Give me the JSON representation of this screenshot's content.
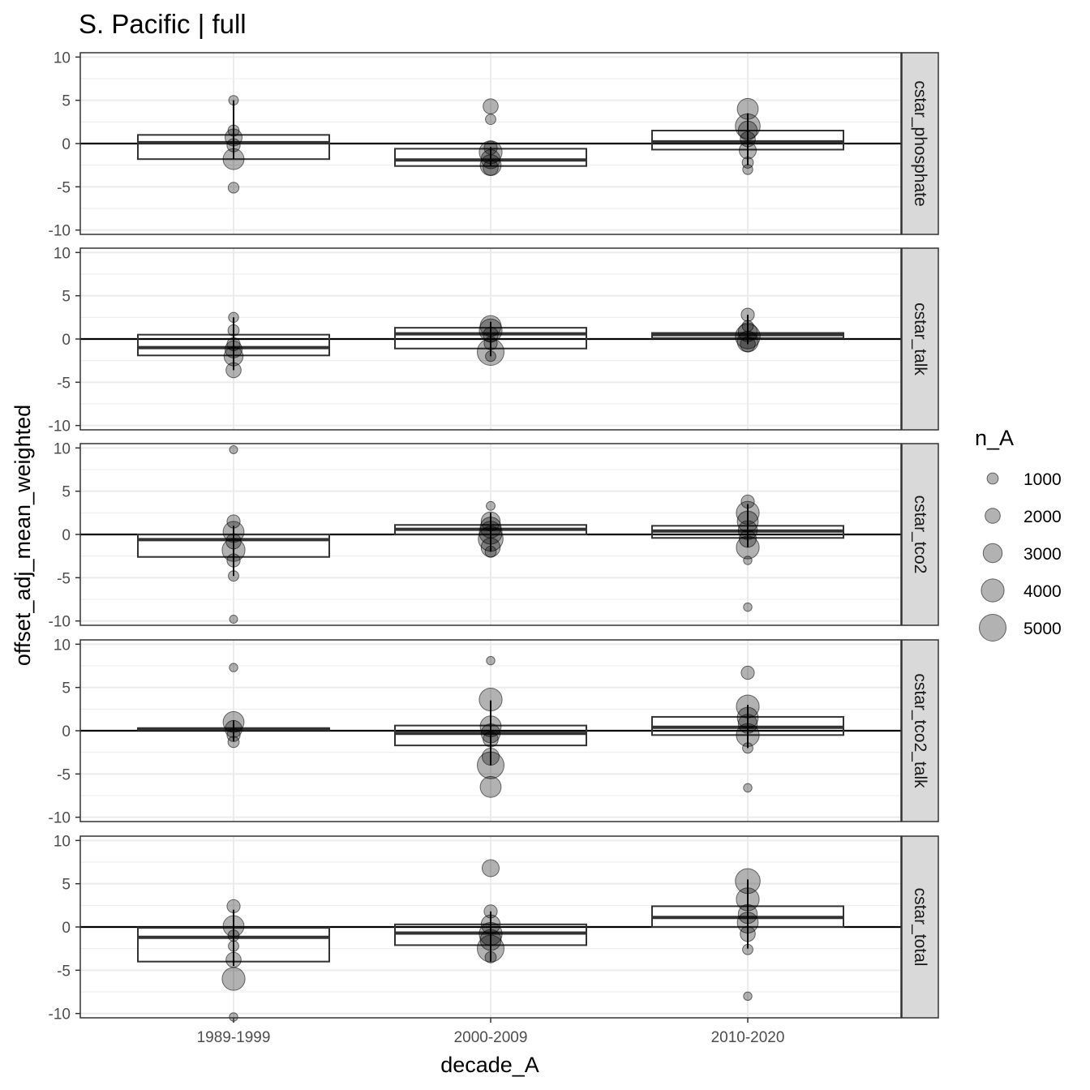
{
  "chart_data": {
    "type": "boxplot",
    "title": "S. Pacific | full",
    "xlabel": "decade_A",
    "ylabel": "offset_adj_mean_weighted",
    "categories": [
      "1989-1999",
      "2000-2009",
      "2010-2020"
    ],
    "ylim": [
      -10.5,
      10.5
    ],
    "y_ticks": [
      10,
      5,
      0,
      -5,
      -10
    ],
    "y_tick_labels": [
      "10",
      "5",
      "0",
      "-5",
      "-10"
    ],
    "grid": true,
    "hline": 0,
    "legend": {
      "title": "n_A",
      "placement": "right",
      "entries": [
        {
          "label": "1000",
          "value": 1000
        },
        {
          "label": "2000",
          "value": 2000
        },
        {
          "label": "3000",
          "value": 3000
        },
        {
          "label": "4000",
          "value": 4000
        },
        {
          "label": "5000",
          "value": 5000
        }
      ]
    },
    "colors": {
      "point": "#000000",
      "box_line": "#333333",
      "strip_bg": "#d9d9d9",
      "grid": "#ebebeb"
    },
    "panels": [
      {
        "name": "cstar_phosphate",
        "boxes": [
          {
            "category": "1989-1999",
            "q1": -1.8,
            "median": 0.1,
            "q3": 1.0
          },
          {
            "category": "2000-2009",
            "q1": -2.6,
            "median": -1.9,
            "q3": -0.6
          },
          {
            "category": "2010-2020",
            "q1": -0.7,
            "median": 0.2,
            "q3": 1.5
          }
        ],
        "whiskers": [
          {
            "category": "1989-1999",
            "low": -1.8,
            "high": 5.0
          },
          {
            "category": "2000-2009",
            "low": -2.6,
            "high": -0.4
          },
          {
            "category": "2010-2020",
            "low": -2.5,
            "high": 3.5
          }
        ],
        "points": [
          {
            "category": "1989-1999",
            "y": 5.0,
            "n": 600
          },
          {
            "category": "1989-1999",
            "y": 1.5,
            "n": 1000
          },
          {
            "category": "1989-1999",
            "y": 0.7,
            "n": 2500
          },
          {
            "category": "1989-1999",
            "y": -0.2,
            "n": 1500
          },
          {
            "category": "1989-1999",
            "y": -1.8,
            "n": 3500
          },
          {
            "category": "1989-1999",
            "y": -5.1,
            "n": 900
          },
          {
            "category": "2000-2009",
            "y": 4.3,
            "n": 2000
          },
          {
            "category": "2000-2009",
            "y": 2.8,
            "n": 800
          },
          {
            "category": "2000-2009",
            "y": -0.5,
            "n": 1500
          },
          {
            "category": "2000-2009",
            "y": -1.0,
            "n": 4000
          },
          {
            "category": "2000-2009",
            "y": -1.8,
            "n": 3000
          },
          {
            "category": "2000-2009",
            "y": -2.5,
            "n": 3500
          },
          {
            "category": "2000-2009",
            "y": -2.8,
            "n": 2000
          },
          {
            "category": "2010-2020",
            "y": 4.0,
            "n": 3500
          },
          {
            "category": "2010-2020",
            "y": 2.0,
            "n": 4500
          },
          {
            "category": "2010-2020",
            "y": 1.5,
            "n": 3000
          },
          {
            "category": "2010-2020",
            "y": 0.5,
            "n": 2000
          },
          {
            "category": "2010-2020",
            "y": -0.8,
            "n": 2500
          },
          {
            "category": "2010-2020",
            "y": -2.2,
            "n": 1000
          },
          {
            "category": "2010-2020",
            "y": -3.0,
            "n": 700
          }
        ]
      },
      {
        "name": "cstar_talk",
        "boxes": [
          {
            "category": "1989-1999",
            "q1": -1.9,
            "median": -1.0,
            "q3": 0.5
          },
          {
            "category": "2000-2009",
            "q1": -1.1,
            "median": 0.6,
            "q3": 1.3
          },
          {
            "category": "2010-2020",
            "q1": 0.1,
            "median": 0.5,
            "q3": 0.7
          }
        ],
        "whiskers": [
          {
            "category": "1989-1999",
            "low": -3.6,
            "high": 2.5
          },
          {
            "category": "2000-2009",
            "low": -2.0,
            "high": 2.0
          },
          {
            "category": "2010-2020",
            "low": -0.6,
            "high": 2.8
          }
        ],
        "points": [
          {
            "category": "1989-1999",
            "y": 2.5,
            "n": 700
          },
          {
            "category": "1989-1999",
            "y": 1.0,
            "n": 1000
          },
          {
            "category": "1989-1999",
            "y": -0.6,
            "n": 1500
          },
          {
            "category": "1989-1999",
            "y": -1.2,
            "n": 2500
          },
          {
            "category": "1989-1999",
            "y": -2.0,
            "n": 3000
          },
          {
            "category": "1989-1999",
            "y": -3.6,
            "n": 2000
          },
          {
            "category": "2000-2009",
            "y": 1.5,
            "n": 3500
          },
          {
            "category": "2000-2009",
            "y": 1.0,
            "n": 4000
          },
          {
            "category": "2000-2009",
            "y": 0.5,
            "n": 2000
          },
          {
            "category": "2000-2009",
            "y": -0.5,
            "n": 1500
          },
          {
            "category": "2000-2009",
            "y": -1.5,
            "n": 5000
          },
          {
            "category": "2000-2009",
            "y": -2.0,
            "n": 800
          },
          {
            "category": "2010-2020",
            "y": 2.8,
            "n": 1500
          },
          {
            "category": "2010-2020",
            "y": 1.5,
            "n": 1000
          },
          {
            "category": "2010-2020",
            "y": 0.8,
            "n": 3000
          },
          {
            "category": "2010-2020",
            "y": 0.3,
            "n": 4500
          },
          {
            "category": "2010-2020",
            "y": -0.3,
            "n": 3500
          },
          {
            "category": "2010-2020",
            "y": -0.6,
            "n": 2000
          }
        ]
      },
      {
        "name": "cstar_tco2",
        "boxes": [
          {
            "category": "1989-1999",
            "q1": -2.6,
            "median": -0.6,
            "q3": 0.0
          },
          {
            "category": "2000-2009",
            "q1": 0.0,
            "median": 0.6,
            "q3": 1.1
          },
          {
            "category": "2010-2020",
            "q1": -0.4,
            "median": 0.4,
            "q3": 1.0
          }
        ],
        "whiskers": [
          {
            "category": "1989-1999",
            "low": -4.8,
            "high": 1.0
          },
          {
            "category": "2000-2009",
            "low": -2.0,
            "high": 2.5
          },
          {
            "category": "2010-2020",
            "low": -1.5,
            "high": 3.5
          }
        ],
        "points": [
          {
            "category": "1989-1999",
            "y": 9.8,
            "n": 200
          },
          {
            "category": "1989-1999",
            "y": 1.5,
            "n": 1500
          },
          {
            "category": "1989-1999",
            "y": 0.3,
            "n": 3500
          },
          {
            "category": "1989-1999",
            "y": -0.8,
            "n": 2000
          },
          {
            "category": "1989-1999",
            "y": -1.8,
            "n": 4000
          },
          {
            "category": "1989-1999",
            "y": -3.0,
            "n": 1500
          },
          {
            "category": "1989-1999",
            "y": -4.8,
            "n": 800
          },
          {
            "category": "1989-1999",
            "y": -9.8,
            "n": 200
          },
          {
            "category": "2000-2009",
            "y": 3.3,
            "n": 400
          },
          {
            "category": "2000-2009",
            "y": 1.5,
            "n": 3000
          },
          {
            "category": "2000-2009",
            "y": 0.8,
            "n": 3500
          },
          {
            "category": "2000-2009",
            "y": 0.2,
            "n": 4000
          },
          {
            "category": "2000-2009",
            "y": -0.5,
            "n": 4500
          },
          {
            "category": "2000-2009",
            "y": -1.5,
            "n": 3000
          },
          {
            "category": "2000-2009",
            "y": -2.0,
            "n": 1000
          },
          {
            "category": "2010-2020",
            "y": 3.8,
            "n": 1500
          },
          {
            "category": "2010-2020",
            "y": 2.5,
            "n": 4000
          },
          {
            "category": "2010-2020",
            "y": 1.5,
            "n": 3500
          },
          {
            "category": "2010-2020",
            "y": 0.5,
            "n": 3000
          },
          {
            "category": "2010-2020",
            "y": -0.5,
            "n": 2500
          },
          {
            "category": "2010-2020",
            "y": -1.5,
            "n": 4000
          },
          {
            "category": "2010-2020",
            "y": -3.0,
            "n": 300
          },
          {
            "category": "2010-2020",
            "y": -8.4,
            "n": 300
          }
        ]
      },
      {
        "name": "cstar_tco2_talk",
        "boxes": [
          {
            "category": "1989-1999",
            "q1": 0.1,
            "median": 0.2,
            "q3": 0.3
          },
          {
            "category": "2000-2009",
            "q1": -1.7,
            "median": -0.3,
            "q3": 0.6
          },
          {
            "category": "2010-2020",
            "q1": -0.5,
            "median": 0.4,
            "q3": 1.6
          }
        ],
        "whiskers": [
          {
            "category": "1989-1999",
            "low": -1.2,
            "high": 1.2
          },
          {
            "category": "2000-2009",
            "low": -4.0,
            "high": 3.5
          },
          {
            "category": "2010-2020",
            "low": -2.0,
            "high": 3.0
          }
        ],
        "points": [
          {
            "category": "1989-1999",
            "y": 7.3,
            "n": 300
          },
          {
            "category": "1989-1999",
            "y": 1.0,
            "n": 3500
          },
          {
            "category": "1989-1999",
            "y": 0.2,
            "n": 2500
          },
          {
            "category": "1989-1999",
            "y": -0.5,
            "n": 1500
          },
          {
            "category": "1989-1999",
            "y": -1.3,
            "n": 1000
          },
          {
            "category": "2000-2009",
            "y": 8.1,
            "n": 300
          },
          {
            "category": "2000-2009",
            "y": 3.6,
            "n": 4000
          },
          {
            "category": "2000-2009",
            "y": 0.5,
            "n": 3500
          },
          {
            "category": "2000-2009",
            "y": -0.3,
            "n": 3000
          },
          {
            "category": "2000-2009",
            "y": -1.0,
            "n": 2000
          },
          {
            "category": "2000-2009",
            "y": -3.0,
            "n": 2500
          },
          {
            "category": "2000-2009",
            "y": -4.0,
            "n": 5000
          },
          {
            "category": "2000-2009",
            "y": -6.5,
            "n": 3500
          },
          {
            "category": "2010-2020",
            "y": 6.7,
            "n": 1500
          },
          {
            "category": "2010-2020",
            "y": 2.8,
            "n": 4000
          },
          {
            "category": "2010-2020",
            "y": 1.5,
            "n": 3500
          },
          {
            "category": "2010-2020",
            "y": 0.8,
            "n": 3000
          },
          {
            "category": "2010-2020",
            "y": -0.5,
            "n": 4000
          },
          {
            "category": "2010-2020",
            "y": -2.0,
            "n": 800
          },
          {
            "category": "2010-2020",
            "y": -6.6,
            "n": 300
          }
        ]
      },
      {
        "name": "cstar_total",
        "boxes": [
          {
            "category": "1989-1999",
            "q1": -4.0,
            "median": -1.2,
            "q3": -0.1
          },
          {
            "category": "2000-2009",
            "q1": -2.1,
            "median": -0.7,
            "q3": 0.3
          },
          {
            "category": "2010-2020",
            "q1": 0.0,
            "median": 1.1,
            "q3": 2.4
          }
        ],
        "whiskers": [
          {
            "category": "1989-1999",
            "low": -4.5,
            "high": 2.0
          },
          {
            "category": "2000-2009",
            "low": -4.0,
            "high": 1.8
          },
          {
            "category": "2010-2020",
            "low": -2.5,
            "high": 5.5
          }
        ],
        "points": [
          {
            "category": "1989-1999",
            "y": 2.4,
            "n": 1500
          },
          {
            "category": "1989-1999",
            "y": 0.1,
            "n": 3500
          },
          {
            "category": "1989-1999",
            "y": -1.0,
            "n": 1000
          },
          {
            "category": "1989-1999",
            "y": -2.2,
            "n": 800
          },
          {
            "category": "1989-1999",
            "y": -3.8,
            "n": 2000
          },
          {
            "category": "1989-1999",
            "y": -6.0,
            "n": 4000
          },
          {
            "category": "1989-1999",
            "y": -10.4,
            "n": 300
          },
          {
            "category": "2000-2009",
            "y": 6.8,
            "n": 2500
          },
          {
            "category": "2000-2009",
            "y": 1.8,
            "n": 1500
          },
          {
            "category": "2000-2009",
            "y": 0.3,
            "n": 3000
          },
          {
            "category": "2000-2009",
            "y": -0.8,
            "n": 4000
          },
          {
            "category": "2000-2009",
            "y": -1.5,
            "n": 3500
          },
          {
            "category": "2000-2009",
            "y": -2.5,
            "n": 5000
          },
          {
            "category": "2000-2009",
            "y": -3.5,
            "n": 1000
          },
          {
            "category": "2010-2020",
            "y": 5.3,
            "n": 4500
          },
          {
            "category": "2010-2020",
            "y": 3.2,
            "n": 4000
          },
          {
            "category": "2010-2020",
            "y": 1.5,
            "n": 3000
          },
          {
            "category": "2010-2020",
            "y": 0.5,
            "n": 3500
          },
          {
            "category": "2010-2020",
            "y": -0.8,
            "n": 2000
          },
          {
            "category": "2010-2020",
            "y": -2.6,
            "n": 800
          },
          {
            "category": "2010-2020",
            "y": -8.0,
            "n": 300
          }
        ]
      }
    ]
  }
}
